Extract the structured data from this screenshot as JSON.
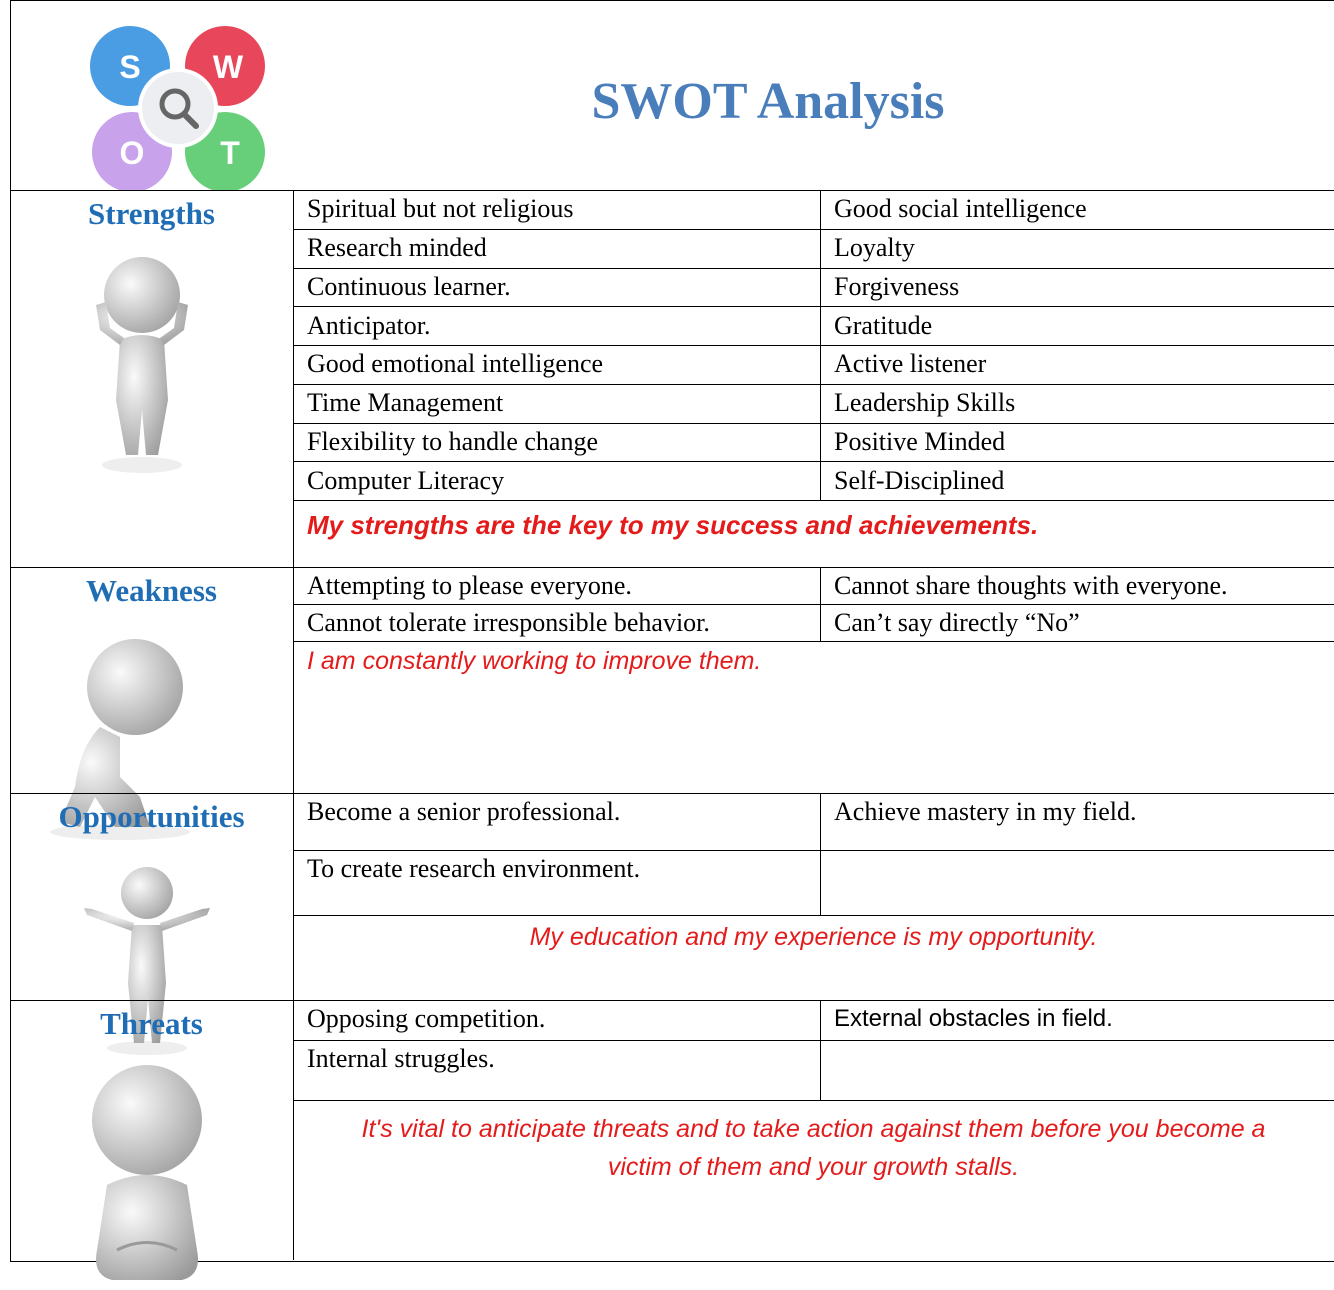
{
  "header": {
    "logo_letters": [
      "S",
      "W",
      "O",
      "T"
    ],
    "title": "SWOT Analysis"
  },
  "sections": [
    {
      "label": "Strengths",
      "rows": [
        [
          "Spiritual but not religious",
          "Good social intelligence"
        ],
        [
          "Research minded",
          "Loyalty"
        ],
        [
          "Continuous learner.",
          "Forgiveness"
        ],
        [
          "Anticipator.",
          "Gratitude"
        ],
        [
          "Good emotional intelligence",
          "Active listener"
        ],
        [
          "Time Management",
          "Leadership Skills"
        ],
        [
          "Flexibility to handle change",
          "Positive Minded"
        ],
        [
          "Computer Literacy",
          "Self-Disciplined"
        ]
      ],
      "note": "My strengths are the key to my success and achievements."
    },
    {
      "label": "Weakness",
      "rows": [
        [
          "Attempting to please everyone.",
          "Cannot share thoughts with everyone."
        ],
        [
          "Cannot tolerate irresponsible behavior.",
          "Can’t say directly “No”"
        ]
      ],
      "note": "I am constantly working to improve them."
    },
    {
      "label": "Opportunities",
      "rows": [
        [
          "Become a senior professional.",
          "Achieve mastery in my field."
        ],
        [
          "To create research environment.",
          null
        ]
      ],
      "note": "My education and my experience is my opportunity."
    },
    {
      "label": "Threats",
      "rows": [
        [
          "Opposing competition.",
          "External obstacles in field."
        ],
        [
          "Internal struggles.",
          null
        ]
      ],
      "note": "It's vital to anticipate threats and to take action against them before you become a victim of them and your growth stalls."
    }
  ]
}
